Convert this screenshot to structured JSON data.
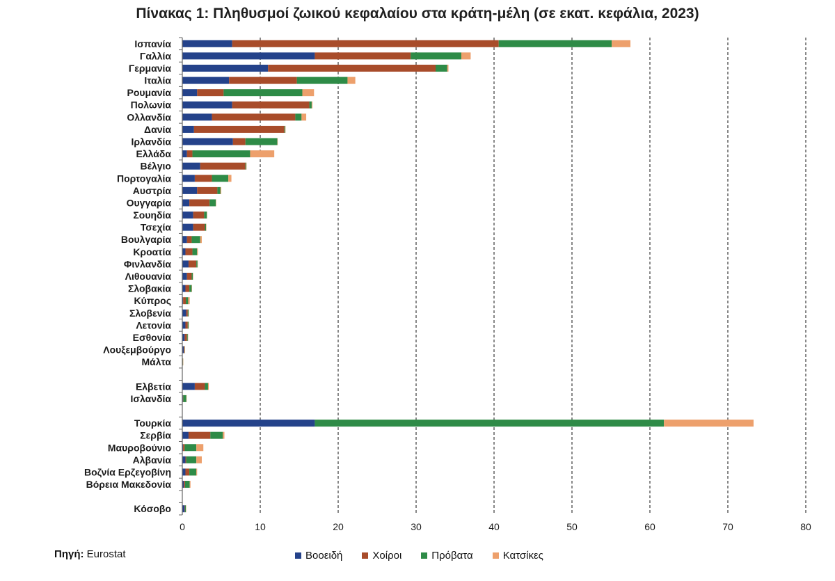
{
  "title": "Πίνακας 1: Πληθυσμοί ζωικού κεφαλαίου στα κράτη-μέλη (σε εκατ. κεφάλια, 2023)",
  "source": {
    "label": "Πηγή:",
    "value": "Eurostat"
  },
  "colors": {
    "Βοοειδή": "#24428a",
    "Χοίροι": "#a84c2a",
    "Πρόβατα": "#2e8b47",
    "Κατσίκες": "#eda06c"
  },
  "chart_data": {
    "type": "bar",
    "orientation": "horizontal",
    "stacked": true,
    "title": "Πίνακας 1: Πληθυσμοί ζωικού κεφαλαίου στα κράτη-μέλη (σε εκατ. κεφάλια, 2023)",
    "xlim": [
      0,
      80
    ],
    "xticks": [
      0,
      10,
      20,
      30,
      40,
      50,
      60,
      70,
      80
    ],
    "grid": "vertical dashed",
    "legend_position": "bottom",
    "categories": [
      "Ισπανία",
      "Γαλλία",
      "Γερμανία",
      "Ιταλία",
      "Ρουμανία",
      "Πολωνία",
      "Ολλανδία",
      "Δανία",
      "Ιρλανδία",
      "Ελλάδα",
      "Βέλγιο",
      "Πορτογαλία",
      "Αυστρία",
      "Ουγγαρία",
      "Σουηδία",
      "Τσεχία",
      "Βουλγαρία",
      "Κροατία",
      "Φινλανδία",
      "Λιθουανία",
      "Σλοβακία",
      "Κύπρος",
      "Σλοβενία",
      "Λετονία",
      "Εσθονία",
      "Λουξεμβούργο",
      "Μάλτα",
      "",
      "Ελβετία",
      "Ισλανδία",
      "",
      "Τουρκία",
      "Σερβία",
      "Μαυροβούνιο",
      "Αλβανία",
      "Βοζνία Ερζεγοβίνη",
      "Βόρεια Μακεδονία",
      "",
      "Κόσοβο"
    ],
    "series": [
      {
        "name": "Βοοειδή",
        "values": [
          6.4,
          17.0,
          11.0,
          6.0,
          1.9,
          6.4,
          3.8,
          1.5,
          6.5,
          0.6,
          2.3,
          1.6,
          1.9,
          0.9,
          1.4,
          1.4,
          0.6,
          0.4,
          0.8,
          0.6,
          0.4,
          0.1,
          0.5,
          0.4,
          0.3,
          0.2,
          0.02,
          0,
          1.6,
          0.08,
          0,
          17.0,
          0.8,
          0.1,
          0.4,
          0.4,
          0.2,
          0,
          0.3
        ]
      },
      {
        "name": "Χοίροι",
        "values": [
          34.2,
          12.3,
          21.5,
          8.7,
          3.4,
          9.9,
          10.7,
          11.6,
          1.6,
          0.7,
          5.8,
          2.2,
          2.6,
          2.6,
          1.4,
          1.5,
          0.6,
          0.9,
          1.0,
          0.6,
          0.5,
          0.35,
          0.2,
          0.3,
          0.3,
          0.08,
          0.04,
          0,
          1.3,
          0.04,
          0,
          0,
          2.8,
          0.2,
          0.1,
          0.5,
          0.15,
          0,
          0.05
        ]
      },
      {
        "name": "Πρόβατα",
        "values": [
          14.5,
          6.5,
          1.5,
          6.5,
          10.1,
          0.3,
          0.8,
          0.1,
          4.1,
          7.4,
          0.1,
          2.1,
          0.4,
          0.8,
          0.35,
          0.15,
          1.1,
          0.6,
          0.15,
          0.15,
          0.3,
          0.3,
          0.1,
          0.1,
          0.1,
          0.01,
          0.01,
          0,
          0.4,
          0.4,
          0,
          44.8,
          1.6,
          1.5,
          1.3,
          0.9,
          0.6,
          0,
          0.1
        ]
      },
      {
        "name": "Κατσίκες",
        "values": [
          2.4,
          1.2,
          0.15,
          1.0,
          1.5,
          0.1,
          0.6,
          0.02,
          0.01,
          3.1,
          0.03,
          0.4,
          0.1,
          0.05,
          0.01,
          0.02,
          0.2,
          0.1,
          0.01,
          0.01,
          0.04,
          0.2,
          0.02,
          0.02,
          0.01,
          0.01,
          0.01,
          0,
          0.1,
          0.01,
          0,
          11.5,
          0.2,
          0.9,
          0.7,
          0.1,
          0.1,
          0,
          0.05
        ]
      }
    ]
  }
}
